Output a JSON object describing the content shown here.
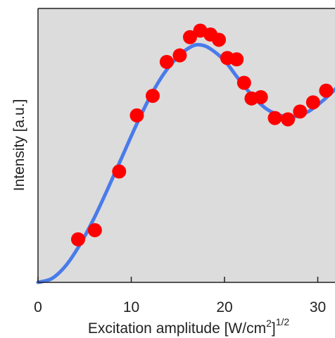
{
  "chart_data": {
    "type": "scatter",
    "title": "",
    "xlabel": "Excitation amplitude [W/cm",
    "xlabel_sup1": "2",
    "xlabel_bracket": "]",
    "xlabel_sup2": "1/2",
    "ylabel": "Intensity [a.u.]",
    "xlim": [
      0,
      32
    ],
    "ylim": [
      0,
      1.05
    ],
    "xticks": [
      0,
      10,
      20,
      30
    ],
    "xtick_labels": [
      "0",
      "10",
      "20",
      "30"
    ],
    "yticks_labeled": false,
    "grid": false,
    "legend": "none",
    "plot_background": "#dcdcdc",
    "series": [
      {
        "kind": "markers",
        "color": "#ff0000",
        "points": [
          {
            "x": 4.3,
            "y": 0.165
          },
          {
            "x": 6.1,
            "y": 0.2
          },
          {
            "x": 8.7,
            "y": 0.425
          },
          {
            "x": 10.6,
            "y": 0.64
          },
          {
            "x": 12.3,
            "y": 0.715
          },
          {
            "x": 13.8,
            "y": 0.845
          },
          {
            "x": 15.2,
            "y": 0.87
          },
          {
            "x": 16.3,
            "y": 0.94
          },
          {
            "x": 17.4,
            "y": 0.965
          },
          {
            "x": 18.5,
            "y": 0.95
          },
          {
            "x": 19.4,
            "y": 0.93
          },
          {
            "x": 20.3,
            "y": 0.86
          },
          {
            "x": 21.3,
            "y": 0.855
          },
          {
            "x": 22.1,
            "y": 0.765
          },
          {
            "x": 22.9,
            "y": 0.705
          },
          {
            "x": 23.9,
            "y": 0.71
          },
          {
            "x": 25.4,
            "y": 0.63
          },
          {
            "x": 26.8,
            "y": 0.625
          },
          {
            "x": 28.1,
            "y": 0.655
          },
          {
            "x": 29.5,
            "y": 0.69
          },
          {
            "x": 30.9,
            "y": 0.735
          }
        ]
      },
      {
        "kind": "line",
        "color": "#4a7bea",
        "points": [
          {
            "x": 0,
            "y": 0
          },
          {
            "x": 1.5,
            "y": 0.015
          },
          {
            "x": 3,
            "y": 0.065
          },
          {
            "x": 4.5,
            "y": 0.145
          },
          {
            "x": 6,
            "y": 0.245
          },
          {
            "x": 7.5,
            "y": 0.36
          },
          {
            "x": 9,
            "y": 0.48
          },
          {
            "x": 10.5,
            "y": 0.6
          },
          {
            "x": 12,
            "y": 0.71
          },
          {
            "x": 13.5,
            "y": 0.8
          },
          {
            "x": 15,
            "y": 0.865
          },
          {
            "x": 16.5,
            "y": 0.905
          },
          {
            "x": 17.5,
            "y": 0.91
          },
          {
            "x": 18.5,
            "y": 0.895
          },
          {
            "x": 20,
            "y": 0.85
          },
          {
            "x": 21.5,
            "y": 0.78
          },
          {
            "x": 23,
            "y": 0.715
          },
          {
            "x": 24.5,
            "y": 0.665
          },
          {
            "x": 26,
            "y": 0.64
          },
          {
            "x": 27.5,
            "y": 0.635
          },
          {
            "x": 29,
            "y": 0.655
          },
          {
            "x": 30.5,
            "y": 0.695
          },
          {
            "x": 32,
            "y": 0.745
          }
        ]
      }
    ]
  }
}
